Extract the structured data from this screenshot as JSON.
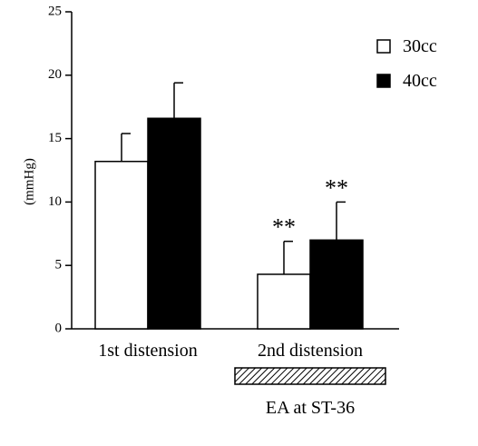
{
  "chart_data": {
    "type": "bar",
    "title": "",
    "xlabel": "",
    "ylabel": "(mmHg)",
    "ylim": [
      0,
      25
    ],
    "yticks": [
      0,
      5,
      10,
      15,
      20,
      25
    ],
    "grid": false,
    "legend_position": "top-right",
    "categories": [
      "1st distension",
      "2nd distension"
    ],
    "series": [
      {
        "name": "30cc",
        "color": "#ffffff",
        "values": [
          13.2,
          4.3
        ],
        "errors": [
          2.2,
          2.6
        ]
      },
      {
        "name": "40cc",
        "color": "#000000",
        "values": [
          16.6,
          7.0
        ],
        "errors": [
          2.8,
          3.0
        ]
      }
    ],
    "annotations": [
      {
        "category": 1,
        "series": 0,
        "text": "**"
      },
      {
        "category": 1,
        "series": 1,
        "text": "**"
      }
    ],
    "treatment_bar": {
      "category": 1,
      "label": "EA at ST-36"
    }
  }
}
